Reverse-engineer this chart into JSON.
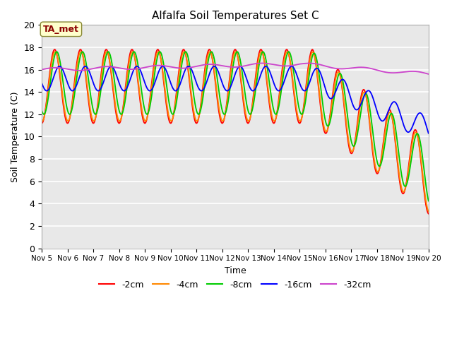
{
  "title": "Alfalfa Soil Temperatures Set C",
  "xlabel": "Time",
  "ylabel": "Soil Temperature (C)",
  "ylim": [
    0,
    20
  ],
  "yticks": [
    0,
    2,
    4,
    6,
    8,
    10,
    12,
    14,
    16,
    18,
    20
  ],
  "bg_color": "#e8e8e8",
  "fig_bg": "#ffffff",
  "annotation_text": "TA_met",
  "annotation_bg": "#ffffcc",
  "annotation_color": "#8b0000",
  "legend_labels": [
    "-2cm",
    "-4cm",
    "-8cm",
    "-16cm",
    "-32cm"
  ],
  "line_colors": [
    "#ff0000",
    "#ff8800",
    "#00cc00",
    "#0000ff",
    "#cc44cc"
  ],
  "xtick_days": [
    5,
    6,
    7,
    8,
    9,
    10,
    11,
    12,
    13,
    14,
    15,
    16,
    17,
    18,
    19,
    20
  ],
  "xtick_labels": [
    "Nov 5",
    "Nov 6",
    "Nov 7",
    "Nov 8",
    "Nov 9",
    "Nov 10",
    "Nov 11",
    "Nov 12",
    "Nov 13",
    "Nov 14",
    "Nov 15",
    "Nov 16",
    "Nov 17",
    "Nov 18",
    "Nov 19",
    "Nov 20"
  ]
}
